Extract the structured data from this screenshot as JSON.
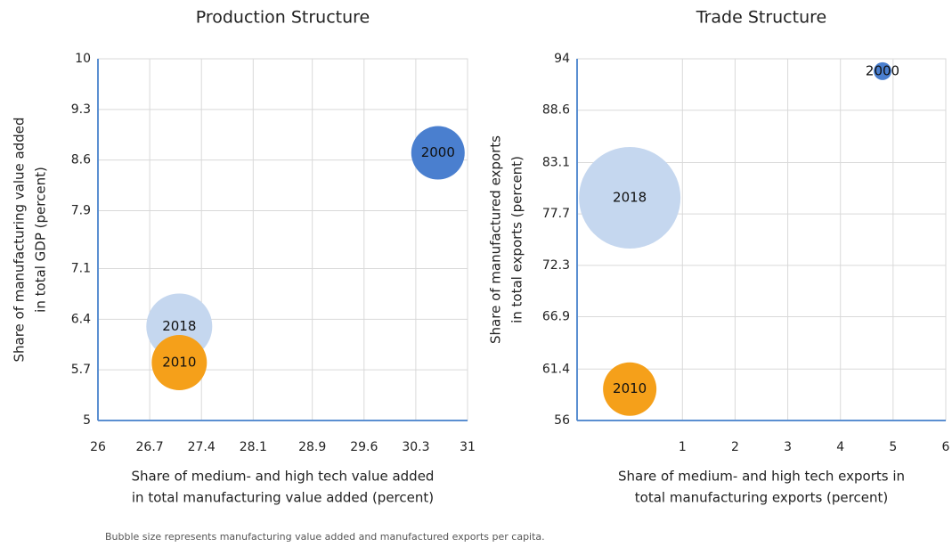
{
  "chart_data": [
    {
      "type": "bubble",
      "title": "Production Structure",
      "x_label": [
        "Share of medium- and high tech value added",
        "in total manufacturing value added (percent)"
      ],
      "y_label": [
        "Share of manufacturing value added",
        "in total GDP (percent)"
      ],
      "xlim": [
        26,
        31
      ],
      "xticks": [
        26,
        26.7,
        27.4,
        28.1,
        28.9,
        29.6,
        30.3,
        31
      ],
      "ylim": [
        5,
        10
      ],
      "yticks": [
        10,
        9.3,
        8.6,
        7.9,
        7.1,
        6.4,
        5.7,
        5
      ],
      "grid": true,
      "series": [
        {
          "name": "2018",
          "color": "#c5d7ef",
          "x": [
            27.1
          ],
          "values": [
            6.3
          ],
          "sizes": [
            1369
          ]
        },
        {
          "name": "2010",
          "color": "#f5a01a",
          "x": [
            27.1
          ],
          "values": [
            5.8
          ],
          "sizes": [
            961
          ]
        },
        {
          "name": "2000",
          "color": "#4a7fcf",
          "x": [
            30.6
          ],
          "values": [
            8.7
          ],
          "sizes": [
            900
          ]
        }
      ]
    },
    {
      "type": "bubble",
      "title": "Trade Structure",
      "x_label": [
        "Share of medium- and high tech exports in",
        "total manufacturing exports (percent)"
      ],
      "y_label": [
        "Share of manufactured exports",
        "in total exports (percent)"
      ],
      "xlim": [
        -1,
        6
      ],
      "xticks": [
        1,
        2,
        3,
        4,
        5,
        6
      ],
      "ylim": [
        56,
        94
      ],
      "yticks": [
        94,
        88.6,
        83.1,
        77.7,
        72.3,
        66.9,
        61.4,
        56
      ],
      "grid": true,
      "series": [
        {
          "name": "2018",
          "color": "#c5d7ef",
          "x": [
            0
          ],
          "values": [
            79.4
          ],
          "sizes": [
            3249
          ]
        },
        {
          "name": "2010",
          "color": "#f5a01a",
          "x": [
            0
          ],
          "values": [
            59.3
          ],
          "sizes": [
            900
          ]
        },
        {
          "name": "2000",
          "color": "#4a7fcf",
          "x": [
            4.8
          ],
          "values": [
            92.7
          ],
          "sizes": [
            100
          ]
        }
      ]
    }
  ],
  "note": "Bubble size represents manufacturing value added and manufactured exports per capita."
}
